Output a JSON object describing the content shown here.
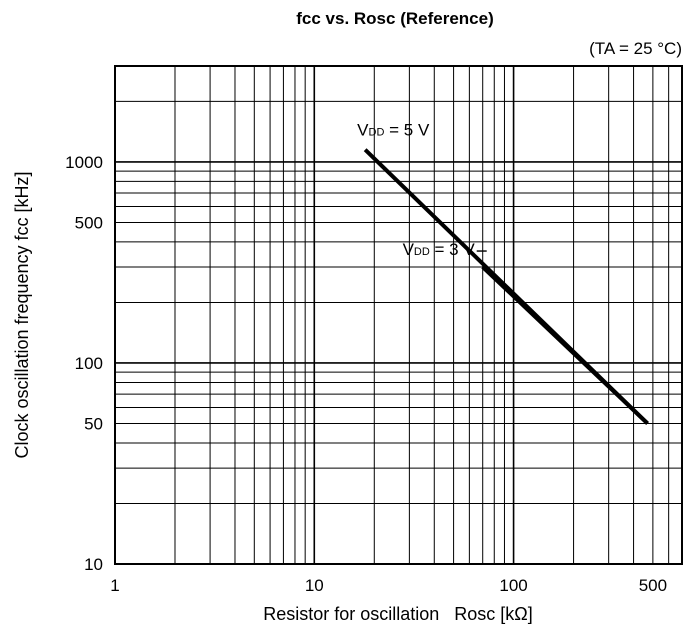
{
  "chart_data": {
    "type": "line",
    "title": "fcc vs. Rosc (Reference)",
    "condition": "(TA = 25 °C)",
    "xlabel": "Resistor for oscillation   Rosc [kΩ]",
    "ylabel": "Clock oscillation frequency  fcc [kHz]",
    "xscale": "log",
    "yscale": "log",
    "xlim": [
      1,
      700
    ],
    "ylim": [
      10,
      3000
    ],
    "grid": true,
    "x_ticks": [
      {
        "value": 1,
        "label": "1"
      },
      {
        "value": 10,
        "label": "10"
      },
      {
        "value": 100,
        "label": "100"
      },
      {
        "value": 500,
        "label": "500"
      }
    ],
    "y_ticks": [
      {
        "value": 10,
        "label": "10"
      },
      {
        "value": 50,
        "label": "50"
      },
      {
        "value": 100,
        "label": "100"
      },
      {
        "value": 500,
        "label": "500"
      },
      {
        "value": 1000,
        "label": "1000"
      }
    ],
    "series": [
      {
        "name": "VDD = 5 V",
        "x": [
          18,
          470
        ],
        "y": [
          1150,
          50
        ]
      },
      {
        "name": "VDD = 3 V",
        "x": [
          70,
          470
        ],
        "y": [
          300,
          50
        ]
      }
    ]
  }
}
